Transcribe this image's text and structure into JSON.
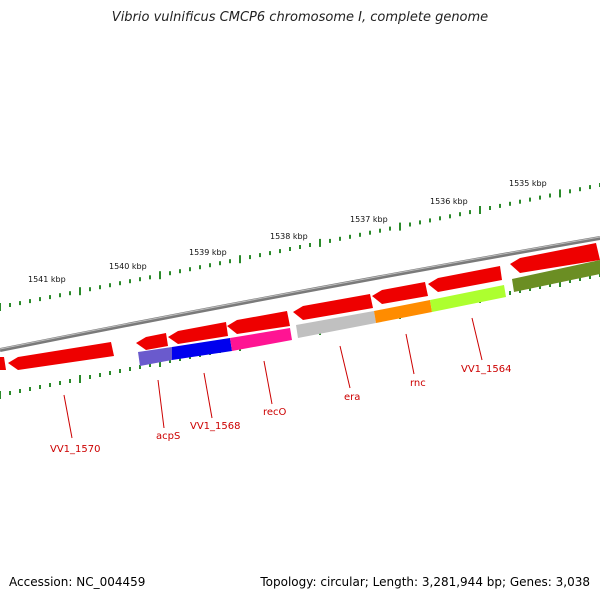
{
  "title": "Vibrio vulnificus CMCP6 chromosome I, complete genome",
  "footer": {
    "accession": "Accession: NC_004459",
    "topology": "Topology: circular; Length: 3,281,944 bp; Genes: 3,038"
  },
  "scale": {
    "unit": "kbp",
    "labels": [
      "1541 kbp",
      "1540 kbp",
      "1539 kbp",
      "1538 kbp",
      "1537 kbp",
      "1536 kbp",
      "1535 kbp"
    ]
  },
  "colors": {
    "forward_gene": "#ee0000",
    "backbone": "#888888",
    "ticks": "#2a8a2a",
    "label": "#cc0000",
    "cog": [
      "#6a5acd",
      "#0000ee",
      "#ff1493",
      "#c0c0c0",
      "#ff8c00",
      "#adff2f",
      "#6b8e23"
    ]
  },
  "gene_labels": [
    "VV1_1570",
    "acpS",
    "VV1_1568",
    "recO",
    "era",
    "rnc",
    "VV1_1564"
  ]
}
